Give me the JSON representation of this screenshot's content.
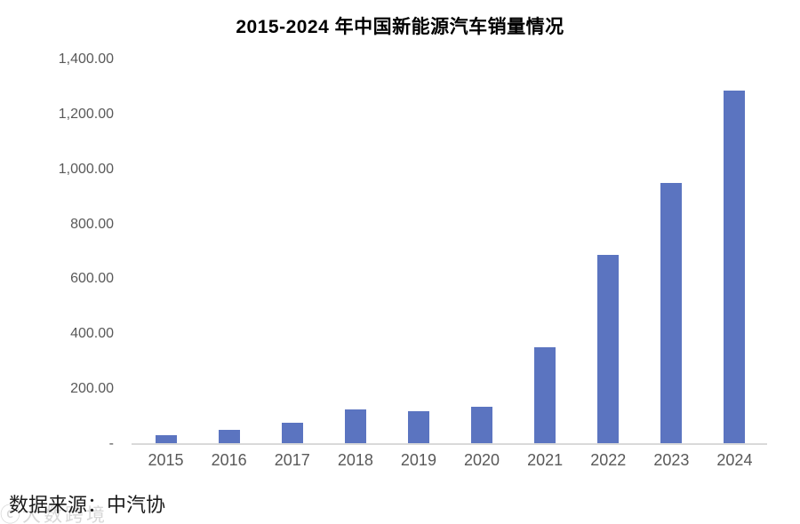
{
  "title": "2015-2024 年中国新能源汽车销量情况",
  "source_note": "数据来源：中汽协",
  "watermark": {
    "icon": "ⓒ",
    "text": "大数跨境"
  },
  "colors": {
    "bar": "#5B74C0",
    "axis_line": "#D9D9D9",
    "tick_text": "#595959",
    "title_text": "#000000"
  },
  "chart_data": {
    "type": "bar",
    "title": "2015-2024 年中国新能源汽车销量情况",
    "categories": [
      "2015",
      "2016",
      "2017",
      "2018",
      "2019",
      "2020",
      "2021",
      "2022",
      "2023",
      "2024"
    ],
    "values": [
      33.1,
      50.7,
      77.7,
      125.6,
      120.6,
      136.7,
      352.1,
      688.7,
      949.5,
      1286.6
    ],
    "xlabel": "",
    "ylabel": "",
    "ylim": [
      0,
      1400
    ],
    "y_ticks": [
      {
        "value": 1400,
        "label": "1,400.00"
      },
      {
        "value": 1200,
        "label": "1,200.00"
      },
      {
        "value": 1000,
        "label": "1,000.00"
      },
      {
        "value": 800,
        "label": "800.00"
      },
      {
        "value": 600,
        "label": "600.00"
      },
      {
        "value": 400,
        "label": "400.00"
      },
      {
        "value": 200,
        "label": "200.00"
      },
      {
        "value": 0,
        "label": "-"
      }
    ],
    "grid": false,
    "legend_position": "none",
    "bar_color": "#5B74C0"
  }
}
